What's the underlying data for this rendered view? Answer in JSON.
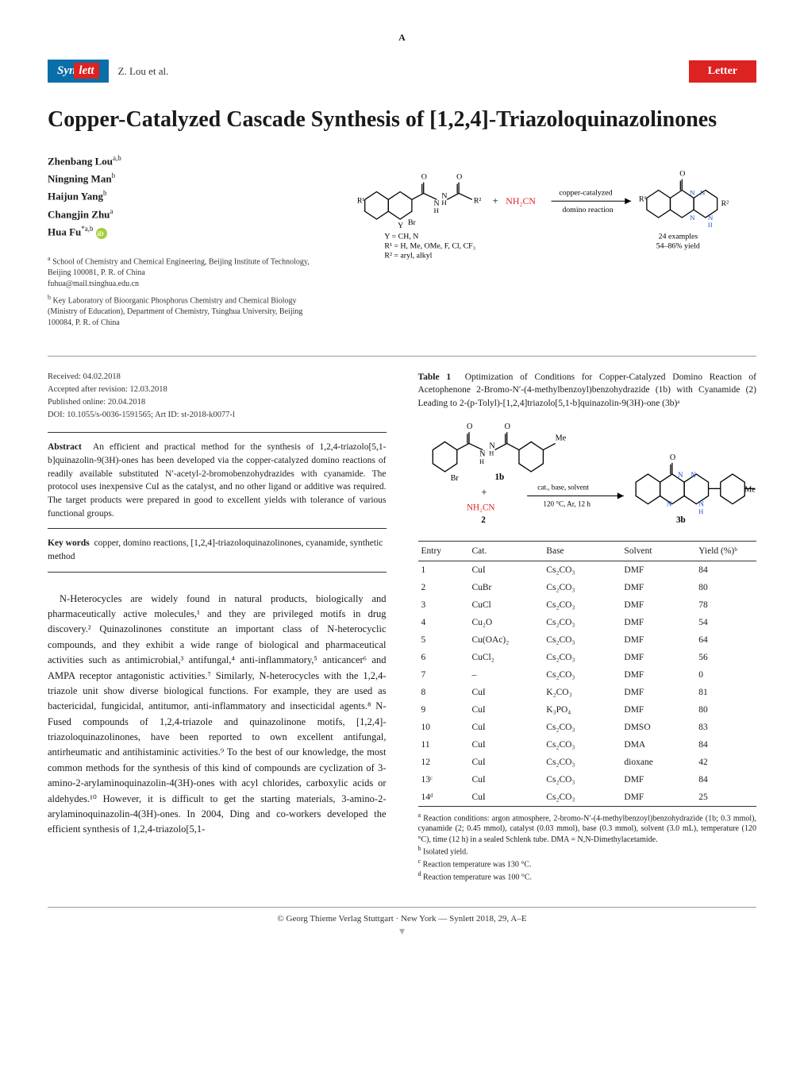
{
  "page_marker": "A",
  "header": {
    "journal_prefix": "Syn",
    "journal_suffix": "lett",
    "author_short": "Z. Lou et al.",
    "badge": "Letter"
  },
  "title": "Copper-Catalyzed Cascade Synthesis of [1,2,4]-Triazoloquinazolinones",
  "authors": [
    {
      "name": "Zhenbang Lou",
      "sup": "a,b",
      "orcid": false,
      "corr": false
    },
    {
      "name": "Ningning Man",
      "sup": "b",
      "orcid": false,
      "corr": false
    },
    {
      "name": "Haijun Yang",
      "sup": "b",
      "orcid": false,
      "corr": false
    },
    {
      "name": "Changjin Zhu",
      "sup": "a",
      "orcid": false,
      "corr": false
    },
    {
      "name": "Hua Fu",
      "sup": "*a,b",
      "orcid": true,
      "corr": true
    }
  ],
  "affiliations": [
    {
      "sup": "a",
      "text": "School of Chemistry and Chemical Engineering, Beijing Institute of Technology, Beijing 100081, P. R. of China",
      "email": "fuhua@mail.tsinghua.edu.cn"
    },
    {
      "sup": "b",
      "text": "Key Laboratory of Bioorganic Phosphorus Chemistry and Chemical Biology (Ministry of Education), Department of Chemistry, Tsinghua University, Beijing 100084, P. R. of China",
      "email": ""
    }
  ],
  "scheme_abstract": {
    "reagent_color": "#d22",
    "reactant_labels": {
      "Y_line": "Y = CH, N",
      "R1_line": "R¹ = H, Me, OMe, F, Cl, CF₃",
      "R2_line": "R² = aryl, alkyl",
      "NH2CN": "NH₂CN"
    },
    "arrow_top": "copper-catalyzed",
    "arrow_bottom": "domino reaction",
    "product_note1": "24 examples",
    "product_note2": "54–86% yield"
  },
  "dates": {
    "received": "Received: 04.02.2018",
    "accepted": "Accepted after revision: 12.03.2018",
    "published": "Published online: 20.04.2018",
    "doi": "DOI: 10.1055/s-0036-1591565; Art ID: st-2018-k0077-l"
  },
  "abstract": {
    "label": "Abstract",
    "text": "An efficient and practical method for the synthesis of 1,2,4-triazolo[5,1-b]quinazolin-9(3H)-ones has been developed via the copper-catalyzed domino reactions of readily available substituted N′-acetyl-2-bromobenzohydrazides with cyanamide. The protocol uses inexpensive CuI as the catalyst, and no other ligand or additive was required. The target products were prepared in good to excellent yields with tolerance of various functional groups."
  },
  "keywords": {
    "label": "Key words",
    "text": "copper, domino reactions, [1,2,4]-triazoloquinazolinones, cyanamide, synthetic method"
  },
  "body": "N-Heterocycles are widely found in natural products, biologically and pharmaceutically active molecules,¹ and they are privileged motifs in drug discovery.² Quinazolinones constitute an important class of N-heterocyclic compounds, and they exhibit a wide range of biological and pharmaceutical activities such as antimicrobial,³ antifungal,⁴ anti-inflammatory,⁵ anticancer⁶ and AMPA receptor antagonistic activities.⁷ Similarly, N-heterocycles with the 1,2,4-triazole unit show diverse biological functions. For example, they are used as bactericidal, fungicidal, antitumor, anti-inflammatory and insecticidal agents.⁸ N-Fused compounds of 1,2,4-triazole and quinazolinone motifs, [1,2,4]-triazoloquinazolinones, have been reported to own excellent antifungal, antirheumatic and antihistaminic activities.⁹ To the best of our knowledge, the most common methods for the synthesis of this kind of compounds are cyclization of 3-amino-2-arylaminoquinazolin-4(3H)-ones with acyl chlorides, carboxylic acids or aldehydes.¹⁰ However, it is difficult to get the starting materials, 3-amino-2-arylaminoquinazolin-4(3H)-ones. In 2004, Ding and co-workers developed the efficient synthesis of 1,2,4-triazolo[5,1-",
  "table1": {
    "caption_label": "Table 1",
    "caption_text": "Optimization of Conditions for Copper-Catalyzed Domino Reaction of Acetophenone 2-Bromo-N′-(4-methylbenzoyl)benzohydrazide (1b) with Cyanamide (2) Leading to 2-(p-Tolyl)-[1,2,4]triazolo[5,1-b]quinazolin-9(3H)-one (3b)ᵃ",
    "scheme": {
      "reactant1_label": "1b",
      "reactant2_label": "2",
      "reactant2_formula": "NH₂CN",
      "conditions_top": "cat., base, solvent",
      "conditions_bottom": "120 °C, Ar, 12 h",
      "product_label": "3b",
      "me_label": "Me",
      "br_label": "Br",
      "reagent_color": "#d22"
    },
    "columns": [
      "Entry",
      "Cat.",
      "Base",
      "Solvent",
      "Yield (%)ᵇ"
    ],
    "rows": [
      [
        "1",
        "CuI",
        "Cs₂CO₃",
        "DMF",
        "84"
      ],
      [
        "2",
        "CuBr",
        "Cs₂CO₃",
        "DMF",
        "80"
      ],
      [
        "3",
        "CuCl",
        "Cs₂CO₃",
        "DMF",
        "78"
      ],
      [
        "4",
        "Cu₂O",
        "Cs₂CO₃",
        "DMF",
        "54"
      ],
      [
        "5",
        "Cu(OAc)₂",
        "Cs₂CO₃",
        "DMF",
        "64"
      ],
      [
        "6",
        "CuCl₂",
        "Cs₂CO₃",
        "DMF",
        "56"
      ],
      [
        "7",
        "–",
        "Cs₂CO₃",
        "DMF",
        "0"
      ],
      [
        "8",
        "CuI",
        "K₂CO₃",
        "DMF",
        "81"
      ],
      [
        "9",
        "CuI",
        "K₃PO₄",
        "DMF",
        "80"
      ],
      [
        "10",
        "CuI",
        "Cs₂CO₃",
        "DMSO",
        "83"
      ],
      [
        "11",
        "CuI",
        "Cs₂CO₃",
        "DMA",
        "84"
      ],
      [
        "12",
        "CuI",
        "Cs₂CO₃",
        "dioxane",
        "42"
      ],
      [
        "13ᶜ",
        "CuI",
        "Cs₂CO₃",
        "DMF",
        "84"
      ],
      [
        "14ᵈ",
        "CuI",
        "Cs₂CO₃",
        "DMF",
        "25"
      ]
    ],
    "notes": [
      {
        "sup": "a",
        "text": "Reaction conditions: argon atmosphere, 2-bromo-N′-(4-methylbenzoyl)benzohydrazide (1b; 0.3 mmol), cyanamide (2; 0.45 mmol), catalyst (0.03 mmol), base (0.3 mmol), solvent (3.0 mL), temperature (120 °C), time (12 h) in a sealed Schlenk tube. DMA = N,N-Dimethylacetamide."
      },
      {
        "sup": "b",
        "text": "Isolated yield."
      },
      {
        "sup": "c",
        "text": "Reaction temperature was 130 °C."
      },
      {
        "sup": "d",
        "text": "Reaction temperature was 100 °C."
      }
    ],
    "col_widths": [
      "15%",
      "22%",
      "23%",
      "22%",
      "18%"
    ]
  },
  "footer": {
    "text": "© Georg Thieme Verlag  Stuttgart · New York — Synlett 2018, 29, A–E"
  },
  "colors": {
    "journal_blue": "#0a6ea8",
    "accent_red": "#d22",
    "text": "#1a1a1a",
    "rule": "#999999",
    "n_blue": "#1a4fd6"
  }
}
